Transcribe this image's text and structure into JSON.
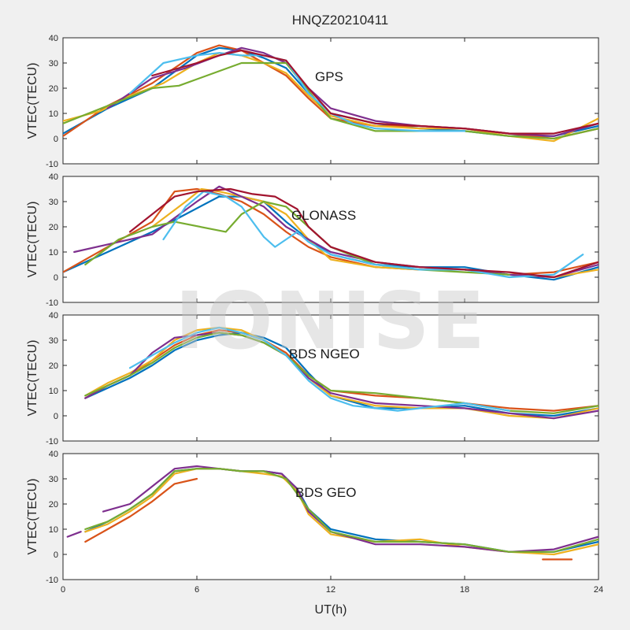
{
  "figure": {
    "title": "HNQZ20210411",
    "watermark": "IONISE",
    "xlabel": "UT(h)"
  },
  "chart_data": [
    {
      "type": "line",
      "panel_label": "GPS",
      "ylabel": "VTEC(TECU)",
      "xlim": [
        0,
        24
      ],
      "ylim": [
        -10,
        40
      ],
      "xticks": [
        0,
        6,
        12,
        18,
        24
      ],
      "yticks": [
        -10,
        0,
        10,
        20,
        30,
        40
      ],
      "grid": false,
      "series": [
        {
          "color": "#0072bd",
          "x": [
            0,
            2,
            4,
            6,
            7,
            8,
            9,
            10,
            11,
            12,
            14,
            16,
            18,
            20,
            22,
            24
          ],
          "y": [
            2,
            12,
            20,
            33,
            36,
            35,
            32,
            28,
            18,
            10,
            6,
            4,
            3,
            1,
            1,
            5
          ]
        },
        {
          "color": "#d95319",
          "x": [
            0,
            2,
            4,
            6,
            7,
            8,
            9,
            10,
            11,
            12,
            14,
            16,
            18,
            20,
            22,
            24
          ],
          "y": [
            1,
            13,
            22,
            34,
            37,
            35,
            30,
            25,
            16,
            8,
            5,
            5,
            4,
            2,
            0,
            4
          ]
        },
        {
          "color": "#edb120",
          "x": [
            0,
            1.7,
            3,
            4.5,
            6,
            7,
            8,
            9,
            10,
            11,
            12,
            14,
            16,
            18,
            20,
            22,
            24
          ],
          "y": [
            7,
            11,
            17,
            22,
            30,
            34,
            33,
            30,
            26,
            17,
            9,
            5,
            4,
            4,
            1,
            -1,
            8
          ]
        },
        {
          "color": "#7e2f8e",
          "x": [
            2,
            4,
            5.5,
            7,
            8,
            9,
            10,
            11,
            12,
            14,
            16,
            18,
            20,
            22,
            24
          ],
          "y": [
            12,
            24,
            28,
            33,
            36,
            34,
            30,
            20,
            12,
            7,
            5,
            4,
            2,
            1,
            6
          ]
        },
        {
          "color": "#77ac30",
          "x": [
            0,
            2,
            4,
            5.2,
            8,
            10,
            12,
            14,
            16,
            18,
            20,
            22,
            24
          ],
          "y": [
            6,
            13,
            20,
            21,
            30,
            30,
            8,
            3,
            3,
            3,
            1,
            0,
            4
          ]
        },
        {
          "color": "#4dbeee",
          "x": [
            3,
            4.5,
            6,
            7,
            8,
            9,
            10,
            11,
            12,
            13,
            14,
            16,
            18
          ],
          "y": [
            18,
            30,
            33,
            34,
            33,
            33,
            31,
            18,
            10,
            6,
            4,
            3,
            3
          ]
        },
        {
          "color": "#a2142f",
          "x": [
            4,
            6,
            7,
            8,
            9,
            10,
            11,
            12,
            14,
            16,
            18,
            20,
            22,
            24
          ],
          "y": [
            25,
            30,
            33,
            35,
            33,
            31,
            20,
            10,
            6,
            5,
            4,
            2,
            2,
            6
          ]
        }
      ]
    },
    {
      "type": "line",
      "panel_label": "GLONASS",
      "ylabel": "VTEC(TECU)",
      "xlim": [
        0,
        24
      ],
      "ylim": [
        -10,
        40
      ],
      "xticks": [
        0,
        6,
        12,
        18,
        24
      ],
      "yticks": [
        -10,
        0,
        10,
        20,
        30,
        40
      ],
      "grid": false,
      "series": [
        {
          "color": "#0072bd",
          "x": [
            0,
            2,
            4,
            5.5,
            7,
            8,
            9,
            10,
            11,
            12,
            14,
            16,
            18,
            20,
            22,
            24
          ],
          "y": [
            2,
            10,
            18,
            25,
            32,
            32,
            30,
            22,
            15,
            9,
            5,
            4,
            4,
            1,
            -1,
            4
          ]
        },
        {
          "color": "#d95319",
          "x": [
            0,
            2,
            4,
            5,
            6,
            7,
            8,
            9,
            10,
            11,
            12,
            14,
            16,
            18,
            20,
            22,
            24
          ],
          "y": [
            2,
            12,
            22,
            34,
            35,
            33,
            30,
            25,
            18,
            12,
            8,
            4,
            3,
            3,
            1,
            2,
            6
          ]
        },
        {
          "color": "#edb120",
          "x": [
            4,
            5.5,
            6.2,
            7,
            8,
            9,
            10,
            11,
            12,
            14,
            16,
            18,
            20,
            22,
            24
          ],
          "y": [
            20,
            30,
            35,
            34,
            32,
            30,
            25,
            15,
            7,
            4,
            3,
            3,
            1,
            0,
            3
          ]
        },
        {
          "color": "#7e2f8e",
          "x": [
            0.5,
            2,
            4,
            6,
            7,
            8,
            9,
            10,
            11,
            12,
            14,
            16,
            18,
            20,
            22,
            24
          ],
          "y": [
            10,
            13,
            17,
            30,
            36,
            32,
            28,
            20,
            15,
            10,
            6,
            4,
            3,
            1,
            0,
            5
          ]
        },
        {
          "color": "#77ac30",
          "x": [
            1,
            2.5,
            4,
            5,
            7.3,
            8,
            9,
            10,
            11,
            12,
            14,
            16,
            18,
            20
          ],
          "y": [
            5,
            15,
            20,
            22,
            18,
            25,
            30,
            28,
            20,
            12,
            5,
            3,
            2,
            1
          ]
        },
        {
          "color": "#4dbeee",
          "x": [
            4.5,
            5.5,
            6.3,
            7.3,
            8,
            9,
            9.5,
            10.5,
            11,
            12,
            14,
            16,
            18,
            20,
            22,
            23.3
          ],
          "y": [
            15,
            28,
            34,
            32,
            28,
            16,
            12,
            18,
            14,
            9,
            5,
            3,
            3,
            0,
            1,
            9
          ]
        },
        {
          "color": "#a2142f",
          "x": [
            3,
            5,
            6,
            7.5,
            8.5,
            9.5,
            10.5,
            11,
            12,
            14,
            16,
            18,
            20,
            22,
            24
          ],
          "y": [
            18,
            32,
            34,
            35,
            33,
            32,
            27,
            20,
            12,
            6,
            4,
            3,
            2,
            0,
            6
          ]
        }
      ]
    },
    {
      "type": "line",
      "panel_label": "BDS NGEO",
      "ylabel": "VTEC(TECU)",
      "xlim": [
        0,
        24
      ],
      "ylim": [
        -10,
        40
      ],
      "xticks": [
        0,
        6,
        12,
        18,
        24
      ],
      "yticks": [
        -10,
        0,
        10,
        20,
        30,
        40
      ],
      "grid": false,
      "series": [
        {
          "color": "#0072bd",
          "x": [
            1,
            2,
            3,
            4,
            5,
            6,
            7,
            8,
            9,
            10,
            11,
            12,
            14,
            16,
            18,
            20,
            22,
            24
          ],
          "y": [
            7,
            11,
            15,
            20,
            26,
            30,
            32,
            33,
            31,
            27,
            17,
            8,
            3,
            3,
            4,
            1,
            0,
            3
          ]
        },
        {
          "color": "#d95319",
          "x": [
            1,
            2,
            3,
            4,
            5,
            6,
            7,
            8,
            9,
            10,
            11,
            12,
            14,
            16,
            18,
            20,
            22,
            24
          ],
          "y": [
            7,
            12,
            16,
            22,
            28,
            32,
            34,
            33,
            30,
            25,
            16,
            10,
            8,
            7,
            5,
            3,
            2,
            4
          ]
        },
        {
          "color": "#edb120",
          "x": [
            1,
            2,
            3,
            4,
            5,
            6,
            7,
            8,
            9,
            10,
            11,
            12,
            14,
            16,
            18,
            20,
            22,
            24
          ],
          "y": [
            8,
            13,
            17,
            22,
            30,
            34,
            35,
            34,
            30,
            24,
            15,
            8,
            4,
            3,
            3,
            0,
            -1,
            3
          ]
        },
        {
          "color": "#7e2f8e",
          "x": [
            1,
            2,
            3,
            4,
            5,
            6,
            7,
            8,
            9,
            10,
            11,
            12,
            14,
            16,
            18,
            20,
            22,
            24
          ],
          "y": [
            7,
            12,
            16,
            25,
            31,
            32,
            33,
            32,
            29,
            24,
            15,
            9,
            5,
            4,
            3,
            1,
            -1,
            2
          ]
        },
        {
          "color": "#77ac30",
          "x": [
            1,
            2,
            3,
            4,
            5,
            6,
            7,
            8,
            9,
            10,
            11,
            12,
            14,
            16,
            18,
            20,
            22,
            24
          ],
          "y": [
            8,
            12,
            16,
            21,
            27,
            31,
            33,
            32,
            29,
            24,
            16,
            10,
            9,
            7,
            5,
            2,
            1,
            4
          ]
        },
        {
          "color": "#4dbeee",
          "x": [
            3,
            4,
            5,
            6,
            7,
            8,
            9,
            10,
            11,
            12,
            13,
            14,
            15,
            16,
            18,
            20
          ],
          "y": [
            19,
            24,
            29,
            33,
            35,
            33,
            30,
            24,
            14,
            7,
            4,
            3,
            2,
            3,
            5,
            2
          ]
        }
      ]
    },
    {
      "type": "line",
      "panel_label": "BDS GEO",
      "ylabel": "VTEC(TECU)",
      "xlim": [
        0,
        24
      ],
      "ylim": [
        -10,
        40
      ],
      "xticks": [
        0,
        6,
        12,
        18,
        24
      ],
      "yticks": [
        -10,
        0,
        10,
        20,
        30,
        40
      ],
      "grid": false,
      "series": [
        {
          "color": "#0072bd",
          "x": [
            1,
            2,
            3,
            4,
            5,
            6,
            7,
            8,
            9,
            9.8,
            10.5,
            11,
            12,
            14,
            16,
            18,
            20,
            22,
            24
          ],
          "y": [
            9,
            13,
            18,
            24,
            33,
            34,
            34,
            33,
            33,
            32,
            26,
            18,
            10,
            6,
            5,
            4,
            1,
            1,
            5
          ]
        },
        {
          "color": "#d95319",
          "x": [
            1,
            2,
            3,
            4,
            5,
            6
          ],
          "y": [
            5,
            10,
            15,
            21,
            28,
            30
          ]
        },
        {
          "color": "#d95319",
          "x": [
            21.5,
            22.8
          ],
          "y": [
            -2,
            -2
          ]
        },
        {
          "color": "#edb120",
          "x": [
            1,
            2,
            3,
            4,
            5,
            6,
            7,
            8,
            9,
            9.8,
            10.5,
            11,
            12,
            14,
            16,
            18,
            20,
            22,
            24
          ],
          "y": [
            9,
            12,
            17,
            23,
            32,
            34,
            34,
            33,
            32,
            31,
            25,
            16,
            8,
            5,
            6,
            3,
            1,
            0,
            4
          ]
        },
        {
          "color": "#7e2f8e",
          "x": [
            1.8,
            3,
            4,
            5,
            6,
            7,
            8,
            9,
            9.8,
            10.5,
            11,
            12,
            14,
            16,
            18,
            20,
            22,
            24
          ],
          "y": [
            17,
            20,
            27,
            34,
            35,
            34,
            33,
            33,
            32,
            26,
            17,
            9,
            4,
            4,
            3,
            1,
            2,
            7
          ]
        },
        {
          "color": "#7e2f8e",
          "x": [
            0.2,
            0.8
          ],
          "y": [
            7,
            9
          ]
        },
        {
          "color": "#77ac30",
          "x": [
            1,
            2,
            3,
            4,
            5,
            6,
            7,
            8,
            9,
            10,
            11,
            12,
            14,
            16,
            18,
            20,
            22,
            24
          ],
          "y": [
            10,
            13,
            18,
            24,
            33,
            34,
            34,
            33,
            33,
            30,
            18,
            9,
            5,
            5,
            4,
            1,
            1,
            6
          ]
        }
      ]
    }
  ]
}
